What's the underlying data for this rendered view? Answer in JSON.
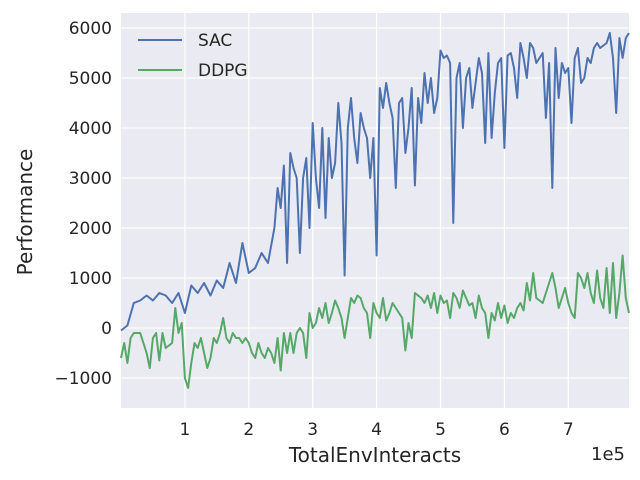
{
  "chart_data": {
    "type": "line",
    "xlabel": "TotalEnvInteracts",
    "ylabel": "Performance",
    "x_offset_text": "1e5",
    "xlim": [
      0.0,
      7.95
    ],
    "ylim": [
      -1600,
      6300
    ],
    "x_ticks": [
      1,
      2,
      3,
      4,
      5,
      6,
      7
    ],
    "x_tick_labels": [
      "1",
      "2",
      "3",
      "4",
      "5",
      "6",
      "7"
    ],
    "y_ticks": [
      -1000,
      0,
      1000,
      2000,
      3000,
      4000,
      5000,
      6000
    ],
    "y_tick_labels": [
      "−1000",
      "0",
      "1000",
      "2000",
      "3000",
      "4000",
      "5000",
      "6000"
    ],
    "grid": true,
    "legend_position": "top-left",
    "series": [
      {
        "name": "SAC",
        "color": "#4c72b0",
        "points": [
          [
            0.0,
            -50
          ],
          [
            0.1,
            50
          ],
          [
            0.2,
            500
          ],
          [
            0.3,
            550
          ],
          [
            0.4,
            650
          ],
          [
            0.5,
            550
          ],
          [
            0.6,
            700
          ],
          [
            0.7,
            650
          ],
          [
            0.8,
            500
          ],
          [
            0.9,
            700
          ],
          [
            1.0,
            300
          ],
          [
            1.1,
            850
          ],
          [
            1.2,
            700
          ],
          [
            1.3,
            900
          ],
          [
            1.4,
            650
          ],
          [
            1.5,
            950
          ],
          [
            1.6,
            800
          ],
          [
            1.7,
            1300
          ],
          [
            1.8,
            900
          ],
          [
            1.9,
            1700
          ],
          [
            2.0,
            1100
          ],
          [
            2.1,
            1200
          ],
          [
            2.2,
            1500
          ],
          [
            2.3,
            1300
          ],
          [
            2.4,
            2000
          ],
          [
            2.45,
            2800
          ],
          [
            2.5,
            2400
          ],
          [
            2.55,
            3250
          ],
          [
            2.6,
            1300
          ],
          [
            2.65,
            3500
          ],
          [
            2.7,
            3200
          ],
          [
            2.75,
            3000
          ],
          [
            2.8,
            1500
          ],
          [
            2.85,
            3000
          ],
          [
            2.9,
            3400
          ],
          [
            2.95,
            2000
          ],
          [
            3.0,
            4100
          ],
          [
            3.05,
            3000
          ],
          [
            3.1,
            2400
          ],
          [
            3.15,
            4000
          ],
          [
            3.2,
            2200
          ],
          [
            3.25,
            3800
          ],
          [
            3.3,
            3000
          ],
          [
            3.35,
            3300
          ],
          [
            3.4,
            4500
          ],
          [
            3.45,
            3700
          ],
          [
            3.5,
            1050
          ],
          [
            3.55,
            4000
          ],
          [
            3.6,
            4600
          ],
          [
            3.65,
            3800
          ],
          [
            3.7,
            3300
          ],
          [
            3.75,
            4300
          ],
          [
            3.8,
            4000
          ],
          [
            3.85,
            3800
          ],
          [
            3.9,
            3000
          ],
          [
            3.95,
            3800
          ],
          [
            4.0,
            1450
          ],
          [
            4.05,
            4800
          ],
          [
            4.1,
            4400
          ],
          [
            4.15,
            4900
          ],
          [
            4.2,
            4500
          ],
          [
            4.25,
            4200
          ],
          [
            4.3,
            2800
          ],
          [
            4.35,
            4500
          ],
          [
            4.4,
            4600
          ],
          [
            4.45,
            3500
          ],
          [
            4.5,
            4000
          ],
          [
            4.55,
            4800
          ],
          [
            4.6,
            2850
          ],
          [
            4.65,
            4600
          ],
          [
            4.7,
            4100
          ],
          [
            4.75,
            5100
          ],
          [
            4.8,
            4500
          ],
          [
            4.85,
            5000
          ],
          [
            4.9,
            4300
          ],
          [
            4.95,
            4600
          ],
          [
            5.0,
            5550
          ],
          [
            5.05,
            5400
          ],
          [
            5.1,
            5450
          ],
          [
            5.15,
            5300
          ],
          [
            5.2,
            2100
          ],
          [
            5.25,
            5000
          ],
          [
            5.3,
            5300
          ],
          [
            5.35,
            4000
          ],
          [
            5.4,
            5000
          ],
          [
            5.45,
            5200
          ],
          [
            5.5,
            4400
          ],
          [
            5.55,
            4900
          ],
          [
            5.6,
            5400
          ],
          [
            5.65,
            5100
          ],
          [
            5.7,
            3700
          ],
          [
            5.75,
            5500
          ],
          [
            5.8,
            3800
          ],
          [
            5.85,
            4700
          ],
          [
            5.9,
            5300
          ],
          [
            5.95,
            5400
          ],
          [
            6.0,
            3600
          ],
          [
            6.05,
            5450
          ],
          [
            6.1,
            5500
          ],
          [
            6.15,
            5200
          ],
          [
            6.2,
            4600
          ],
          [
            6.25,
            5700
          ],
          [
            6.3,
            5400
          ],
          [
            6.35,
            5000
          ],
          [
            6.4,
            5700
          ],
          [
            6.45,
            5600
          ],
          [
            6.5,
            5300
          ],
          [
            6.55,
            5400
          ],
          [
            6.6,
            5500
          ],
          [
            6.65,
            4200
          ],
          [
            6.7,
            5300
          ],
          [
            6.75,
            2800
          ],
          [
            6.8,
            5600
          ],
          [
            6.85,
            4600
          ],
          [
            6.9,
            5300
          ],
          [
            6.95,
            5100
          ],
          [
            7.0,
            5200
          ],
          [
            7.05,
            4100
          ],
          [
            7.1,
            5400
          ],
          [
            7.15,
            5600
          ],
          [
            7.2,
            4900
          ],
          [
            7.25,
            5000
          ],
          [
            7.3,
            5400
          ],
          [
            7.35,
            5300
          ],
          [
            7.4,
            5600
          ],
          [
            7.45,
            5700
          ],
          [
            7.5,
            5600
          ],
          [
            7.55,
            5650
          ],
          [
            7.6,
            5700
          ],
          [
            7.65,
            5900
          ],
          [
            7.7,
            5400
          ],
          [
            7.75,
            4300
          ],
          [
            7.8,
            5800
          ],
          [
            7.85,
            5400
          ],
          [
            7.9,
            5800
          ],
          [
            7.95,
            5900
          ]
        ]
      },
      {
        "name": "DDPG",
        "color": "#55a868",
        "points": [
          [
            0.0,
            -600
          ],
          [
            0.05,
            -300
          ],
          [
            0.1,
            -700
          ],
          [
            0.15,
            -200
          ],
          [
            0.2,
            -100
          ],
          [
            0.3,
            -100
          ],
          [
            0.35,
            -300
          ],
          [
            0.4,
            -500
          ],
          [
            0.45,
            -800
          ],
          [
            0.5,
            -200
          ],
          [
            0.55,
            -100
          ],
          [
            0.6,
            -650
          ],
          [
            0.65,
            -100
          ],
          [
            0.7,
            -400
          ],
          [
            0.8,
            -300
          ],
          [
            0.85,
            400
          ],
          [
            0.9,
            -100
          ],
          [
            0.95,
            100
          ],
          [
            1.0,
            -1000
          ],
          [
            1.05,
            -1200
          ],
          [
            1.1,
            -700
          ],
          [
            1.15,
            -300
          ],
          [
            1.2,
            -400
          ],
          [
            1.25,
            -200
          ],
          [
            1.3,
            -500
          ],
          [
            1.35,
            -800
          ],
          [
            1.4,
            -600
          ],
          [
            1.45,
            -200
          ],
          [
            1.5,
            -300
          ],
          [
            1.55,
            -100
          ],
          [
            1.6,
            200
          ],
          [
            1.65,
            -200
          ],
          [
            1.7,
            -300
          ],
          [
            1.75,
            -100
          ],
          [
            1.8,
            -200
          ],
          [
            1.85,
            -200
          ],
          [
            1.9,
            -300
          ],
          [
            1.95,
            -200
          ],
          [
            2.0,
            -300
          ],
          [
            2.05,
            -500
          ],
          [
            2.1,
            -600
          ],
          [
            2.15,
            -300
          ],
          [
            2.2,
            -500
          ],
          [
            2.25,
            -600
          ],
          [
            2.3,
            -400
          ],
          [
            2.35,
            -500
          ],
          [
            2.4,
            -700
          ],
          [
            2.45,
            -200
          ],
          [
            2.5,
            -850
          ],
          [
            2.55,
            -100
          ],
          [
            2.6,
            -500
          ],
          [
            2.65,
            -100
          ],
          [
            2.7,
            -500
          ],
          [
            2.75,
            -100
          ],
          [
            2.8,
            0
          ],
          [
            2.85,
            -100
          ],
          [
            2.9,
            -600
          ],
          [
            2.95,
            300
          ],
          [
            3.0,
            0
          ],
          [
            3.05,
            100
          ],
          [
            3.1,
            400
          ],
          [
            3.15,
            200
          ],
          [
            3.2,
            500
          ],
          [
            3.25,
            100
          ],
          [
            3.3,
            300
          ],
          [
            3.35,
            550
          ],
          [
            3.4,
            400
          ],
          [
            3.45,
            200
          ],
          [
            3.5,
            -200
          ],
          [
            3.55,
            200
          ],
          [
            3.6,
            600
          ],
          [
            3.65,
            500
          ],
          [
            3.7,
            650
          ],
          [
            3.75,
            600
          ],
          [
            3.8,
            400
          ],
          [
            3.85,
            300
          ],
          [
            3.9,
            -200
          ],
          [
            3.95,
            500
          ],
          [
            4.0,
            300
          ],
          [
            4.05,
            200
          ],
          [
            4.1,
            600
          ],
          [
            4.15,
            150
          ],
          [
            4.2,
            300
          ],
          [
            4.25,
            500
          ],
          [
            4.3,
            400
          ],
          [
            4.35,
            300
          ],
          [
            4.4,
            200
          ],
          [
            4.45,
            -450
          ],
          [
            4.5,
            100
          ],
          [
            4.55,
            -200
          ],
          [
            4.6,
            700
          ],
          [
            4.65,
            650
          ],
          [
            4.7,
            600
          ],
          [
            4.75,
            500
          ],
          [
            4.8,
            650
          ],
          [
            4.85,
            400
          ],
          [
            4.9,
            700
          ],
          [
            4.95,
            300
          ],
          [
            5.0,
            650
          ],
          [
            5.05,
            500
          ],
          [
            5.1,
            550
          ],
          [
            5.15,
            200
          ],
          [
            5.2,
            700
          ],
          [
            5.25,
            600
          ],
          [
            5.3,
            400
          ],
          [
            5.35,
            750
          ],
          [
            5.4,
            600
          ],
          [
            5.45,
            450
          ],
          [
            5.5,
            500
          ],
          [
            5.55,
            200
          ],
          [
            5.6,
            650
          ],
          [
            5.65,
            400
          ],
          [
            5.7,
            300
          ],
          [
            5.75,
            -200
          ],
          [
            5.8,
            300
          ],
          [
            5.85,
            150
          ],
          [
            5.9,
            500
          ],
          [
            5.95,
            200
          ],
          [
            6.0,
            450
          ],
          [
            6.05,
            100
          ],
          [
            6.1,
            300
          ],
          [
            6.15,
            200
          ],
          [
            6.2,
            400
          ],
          [
            6.25,
            500
          ],
          [
            6.3,
            350
          ],
          [
            6.35,
            900
          ],
          [
            6.4,
            550
          ],
          [
            6.45,
            1100
          ],
          [
            6.5,
            600
          ],
          [
            6.55,
            550
          ],
          [
            6.6,
            500
          ],
          [
            6.65,
            700
          ],
          [
            6.7,
            900
          ],
          [
            6.75,
            1100
          ],
          [
            6.8,
            800
          ],
          [
            6.85,
            400
          ],
          [
            6.9,
            600
          ],
          [
            6.95,
            800
          ],
          [
            7.0,
            500
          ],
          [
            7.05,
            300
          ],
          [
            7.1,
            200
          ],
          [
            7.15,
            1100
          ],
          [
            7.2,
            1000
          ],
          [
            7.25,
            800
          ],
          [
            7.3,
            1100
          ],
          [
            7.35,
            700
          ],
          [
            7.4,
            500
          ],
          [
            7.45,
            1150
          ],
          [
            7.5,
            600
          ],
          [
            7.55,
            400
          ],
          [
            7.6,
            1200
          ],
          [
            7.65,
            300
          ],
          [
            7.7,
            1300
          ],
          [
            7.75,
            200
          ],
          [
            7.8,
            700
          ],
          [
            7.85,
            1450
          ],
          [
            7.9,
            600
          ],
          [
            7.95,
            300
          ]
        ]
      }
    ]
  }
}
